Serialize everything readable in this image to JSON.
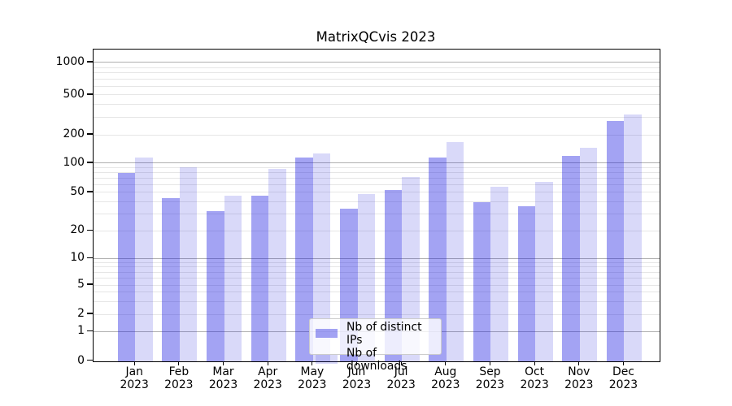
{
  "title": "MatrixQCvis 2023",
  "chart_data": {
    "type": "bar",
    "title": "MatrixQCvis 2023",
    "categories": [
      "Jan",
      "Feb",
      "Mar",
      "Apr",
      "May",
      "Jun",
      "Jul",
      "Aug",
      "Sep",
      "Oct",
      "Nov",
      "Dec"
    ],
    "x_tick_second_line": "2023",
    "series": [
      {
        "name": "Nb of distinct IPs",
        "color": "rgba(25,25,224,0.40)",
        "color_on_white_hex": "#a3a3f2",
        "values": [
          79,
          44,
          32,
          46,
          115,
          34,
          53,
          115,
          40,
          36,
          120,
          275
        ]
      },
      {
        "name": "Nb of downloads",
        "color": "rgba(18,18,218,0.16)",
        "color_on_white_hex": "#d9d9f9",
        "values": [
          115,
          91,
          46,
          87,
          127,
          48,
          72,
          166,
          57,
          64,
          146,
          320
        ]
      }
    ],
    "yscale": "symlog",
    "ylabel": "",
    "xlabel": "",
    "ylim": [
      0,
      1350
    ],
    "y_tick_labels": [
      "0",
      "1",
      "2",
      "5",
      "10",
      "20",
      "50",
      "100",
      "200",
      "500",
      "1000"
    ],
    "grid": true,
    "legend_position": "lower center"
  },
  "legend": {
    "items": [
      {
        "label": "Nb of distinct IPs"
      },
      {
        "label": "Nb of downloads"
      }
    ]
  },
  "colors": {
    "major_grid": "#b0b0b0",
    "minor_grid": "#e6e6e6",
    "spine": "#000000",
    "background": "#ffffff"
  }
}
